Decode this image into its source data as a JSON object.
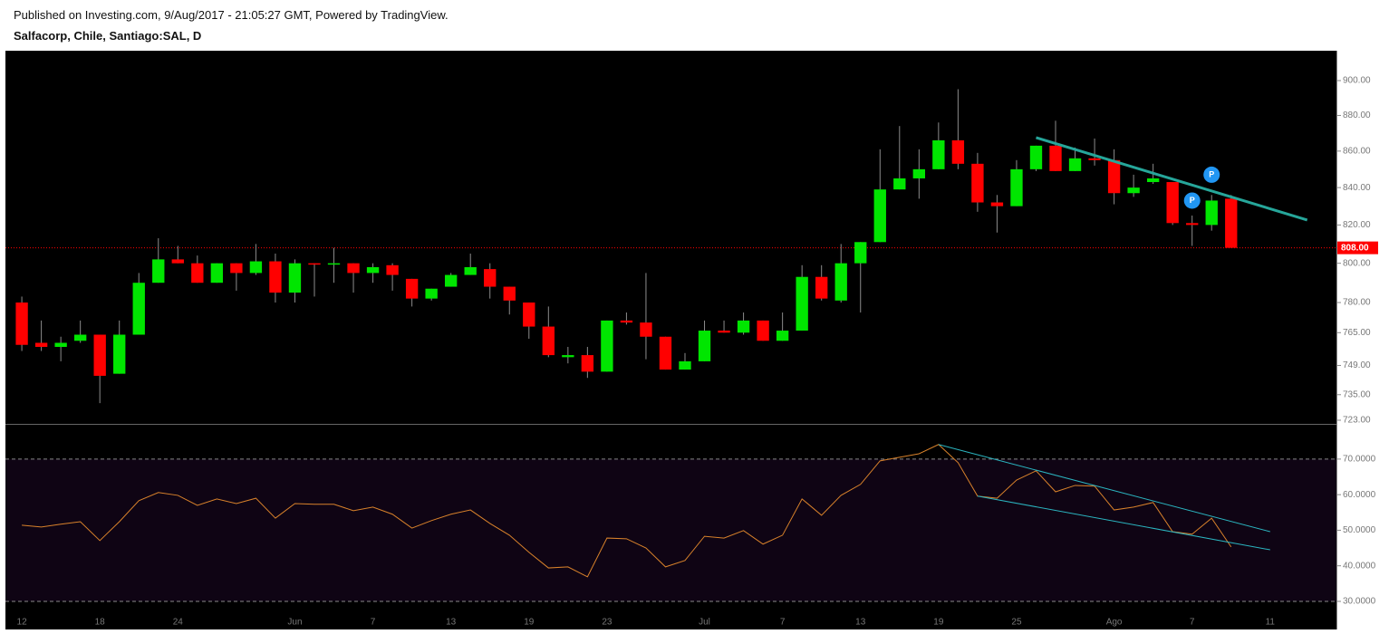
{
  "header": {
    "published": "Published on Investing.com, 9/Aug/2017 - 21:05:27 GMT, Powered by TradingView.",
    "title": "Salfacorp, Chile, Santiago:SAL, D"
  },
  "chart_data": [
    {
      "type": "candlestick",
      "categories": [
        "12",
        null,
        null,
        null,
        "18",
        null,
        null,
        null,
        "24",
        null,
        null,
        null,
        null,
        null,
        "Jun",
        null,
        null,
        null,
        "7",
        null,
        null,
        null,
        "13",
        null,
        null,
        null,
        "19",
        null,
        null,
        null,
        "23",
        null,
        null,
        null,
        null,
        "Jul",
        null,
        null,
        null,
        "7",
        null,
        null,
        null,
        "13",
        null,
        null,
        null,
        "19",
        null,
        null,
        null,
        "25",
        null,
        null,
        null,
        null,
        "Ago",
        null,
        null,
        null,
        "7",
        null,
        null,
        null,
        "11"
      ],
      "open": [
        780,
        760,
        758,
        761,
        764,
        745,
        764,
        790,
        802,
        800,
        790,
        800,
        795,
        801,
        785,
        800,
        799.5,
        800,
        795,
        799,
        792,
        782,
        788,
        794,
        797,
        788,
        780,
        768,
        753,
        754,
        746,
        771,
        770,
        763,
        747,
        751,
        766,
        765,
        771,
        761,
        766,
        793,
        781,
        800,
        811,
        839,
        845,
        850,
        866,
        853,
        832,
        830,
        850,
        863,
        849,
        856,
        855,
        837,
        843,
        843,
        821,
        820,
        834,
        null,
        null
      ],
      "high": [
        783,
        771,
        763,
        771,
        764,
        771,
        795,
        813,
        809,
        804,
        800,
        800,
        810,
        805,
        802,
        800,
        808,
        800,
        800,
        800,
        792,
        787,
        795,
        805,
        800,
        788,
        780,
        778,
        758,
        758,
        771,
        775,
        795,
        763,
        755,
        771,
        771,
        775,
        771,
        775,
        799,
        799,
        810,
        811,
        861,
        874,
        861,
        876,
        895,
        859,
        836,
        855,
        863,
        877,
        862,
        867,
        861,
        847,
        853,
        843,
        825,
        836,
        836,
        null,
        null
      ],
      "low": [
        756,
        756,
        751,
        760,
        731,
        745,
        764,
        790,
        800,
        790,
        790,
        786,
        794,
        780,
        780,
        783,
        790,
        785,
        790,
        786,
        778,
        781,
        788,
        794,
        782,
        774,
        762,
        753,
        750,
        743,
        746,
        769,
        752,
        747,
        747,
        751,
        765,
        764,
        761,
        761,
        766,
        781,
        780,
        775,
        811,
        839,
        834,
        850,
        850,
        827,
        816,
        830,
        849,
        849,
        849,
        852,
        831,
        835,
        842,
        820,
        809,
        817,
        808,
        null,
        null
      ],
      "close": [
        759,
        758,
        760,
        764,
        744,
        764,
        790,
        802,
        800,
        790,
        800,
        795,
        801,
        785,
        800,
        799.5,
        800,
        795,
        798,
        794,
        782,
        787,
        794,
        798,
        788,
        781,
        768,
        754,
        754,
        746,
        771,
        770,
        763,
        747,
        751,
        766,
        765,
        771,
        761,
        766,
        793,
        782,
        800,
        811,
        839,
        845,
        850,
        866,
        853,
        832,
        830,
        850,
        863,
        849,
        856,
        855,
        837,
        840,
        845,
        821,
        820,
        833,
        808,
        null,
        null
      ],
      "up_color": "#00e600",
      "down_color": "#ff0000",
      "wick_color": "#8c8c8c",
      "xlim": [
        -0.84,
        67.4
      ],
      "ylim": [
        721.3,
        917.5
      ],
      "yscale": "log",
      "yticks": [
        {
          "value": 900,
          "label": "900.00"
        },
        {
          "value": 880,
          "label": "880.00"
        },
        {
          "value": 860,
          "label": "860.00"
        },
        {
          "value": 840,
          "label": "840.00"
        },
        {
          "value": 820,
          "label": "820.00"
        },
        {
          "value": 800,
          "label": "800.00"
        },
        {
          "value": 780,
          "label": "780.00"
        },
        {
          "value": 765,
          "label": "765.00"
        },
        {
          "value": 749,
          "label": "749.00"
        },
        {
          "value": 735,
          "label": "735.00"
        },
        {
          "value": 723,
          "label": "723.00"
        }
      ],
      "last_price": {
        "value": 808,
        "label": "808.00",
        "color": "#ff0000"
      },
      "trendlines": [
        {
          "x": [
            52,
            65.9
          ],
          "y": [
            867.5,
            822.6
          ],
          "color": "#26a69a"
        }
      ],
      "markers": [
        {
          "label": "P",
          "x": 60,
          "y": 833,
          "color": "#2196f3"
        },
        {
          "label": "P",
          "x": 61,
          "y": 847,
          "color": "#2196f3"
        }
      ]
    },
    {
      "type": "line",
      "values": [
        51.4,
        50.9,
        51.7,
        52.4,
        47.1,
        52.4,
        58.3,
        60.6,
        59.8,
        57.0,
        58.8,
        57.5,
        59.0,
        53.4,
        57.5,
        57.3,
        57.3,
        55.5,
        56.5,
        54.5,
        50.6,
        52.7,
        54.5,
        55.7,
        51.9,
        48.6,
        43.8,
        39.4,
        39.7,
        36.9,
        47.8,
        47.6,
        45.0,
        39.7,
        41.5,
        48.3,
        47.8,
        49.9,
        46.1,
        48.6,
        58.8,
        54.2,
        59.8,
        62.9,
        69.5,
        70.5,
        71.5,
        74.1,
        69.0,
        59.6,
        59.0,
        64.1,
        66.7,
        60.8,
        62.6,
        62.4,
        55.7,
        56.5,
        57.8,
        49.6,
        48.9,
        53.4,
        45.3,
        null,
        null
      ],
      "color": "#d9822b",
      "xlim": [
        -0.84,
        67.4
      ],
      "ylim": [
        22.1,
        79.9
      ],
      "yticks": [
        {
          "value": 30,
          "label": "30.0000"
        },
        {
          "value": 40,
          "label": "40.0000"
        },
        {
          "value": 50,
          "label": "50.0000"
        },
        {
          "value": 60,
          "label": "60.0000"
        },
        {
          "value": 70,
          "label": "70.0000"
        }
      ],
      "band": [
        30,
        70
      ],
      "band_color": "#0f0414",
      "trendlines": [
        {
          "x": [
            47,
            64
          ],
          "y": [
            74.1,
            49.6
          ],
          "color": "#2bb5c0"
        },
        {
          "x": [
            49,
            64
          ],
          "y": [
            59.6,
            44.5
          ],
          "color": "#2bb5c0"
        }
      ]
    }
  ]
}
